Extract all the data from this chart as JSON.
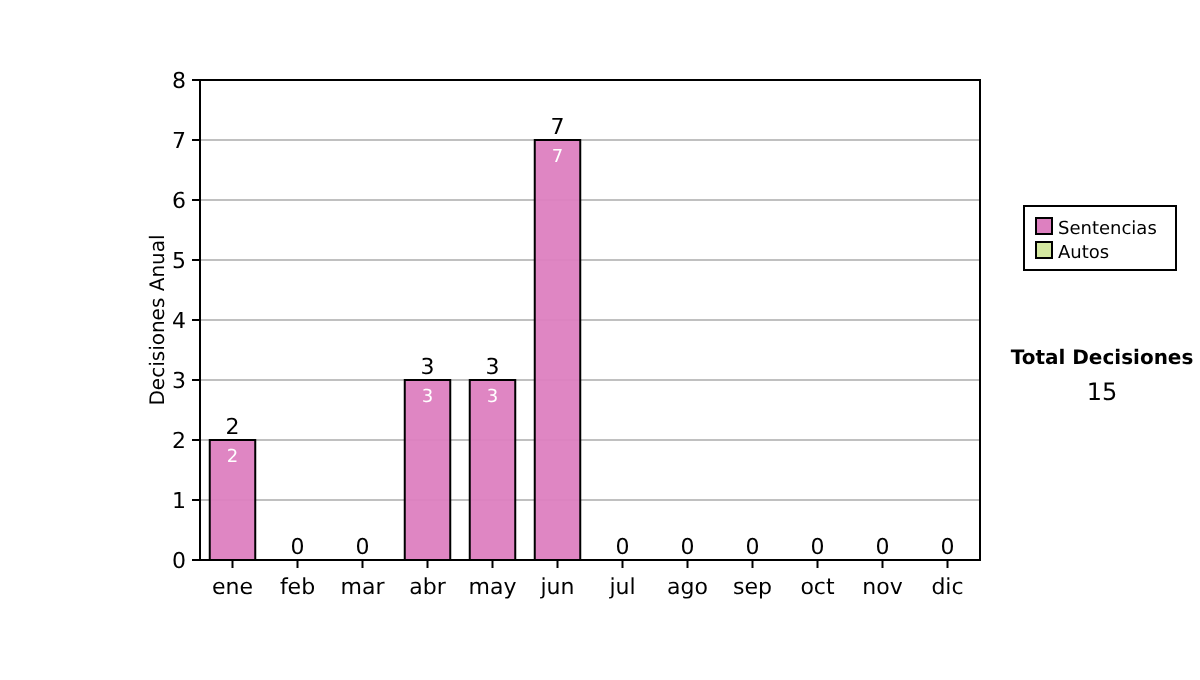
{
  "chart_data": {
    "type": "bar",
    "ylabel": "Decisiones Anual",
    "categories": [
      "ene",
      "feb",
      "mar",
      "abr",
      "may",
      "jun",
      "jul",
      "ago",
      "sep",
      "oct",
      "nov",
      "dic"
    ],
    "series": [
      {
        "name": "Sentencias",
        "color": "#dd80c0",
        "values": [
          2,
          0,
          0,
          3,
          3,
          7,
          0,
          0,
          0,
          0,
          0,
          0
        ],
        "value_labels": [
          "2",
          null,
          null,
          "3",
          "3",
          "7",
          null,
          null,
          null,
          null,
          null,
          null
        ]
      },
      {
        "name": "Autos",
        "color": "#d4e8a0",
        "values": [
          0,
          0,
          0,
          0,
          0,
          0,
          0,
          0,
          0,
          0,
          0,
          0
        ]
      }
    ],
    "stacked": true,
    "totals": [
      "2",
      "0",
      "0",
      "3",
      "3",
      "7",
      "0",
      "0",
      "0",
      "0",
      "0",
      "0"
    ],
    "ylim": [
      0,
      8
    ],
    "yticks": [
      0,
      1,
      2,
      3,
      4,
      5,
      6,
      7,
      8
    ],
    "grid": "y",
    "legend": "right",
    "annotations": [
      "Total Decisiones",
      "15"
    ]
  }
}
